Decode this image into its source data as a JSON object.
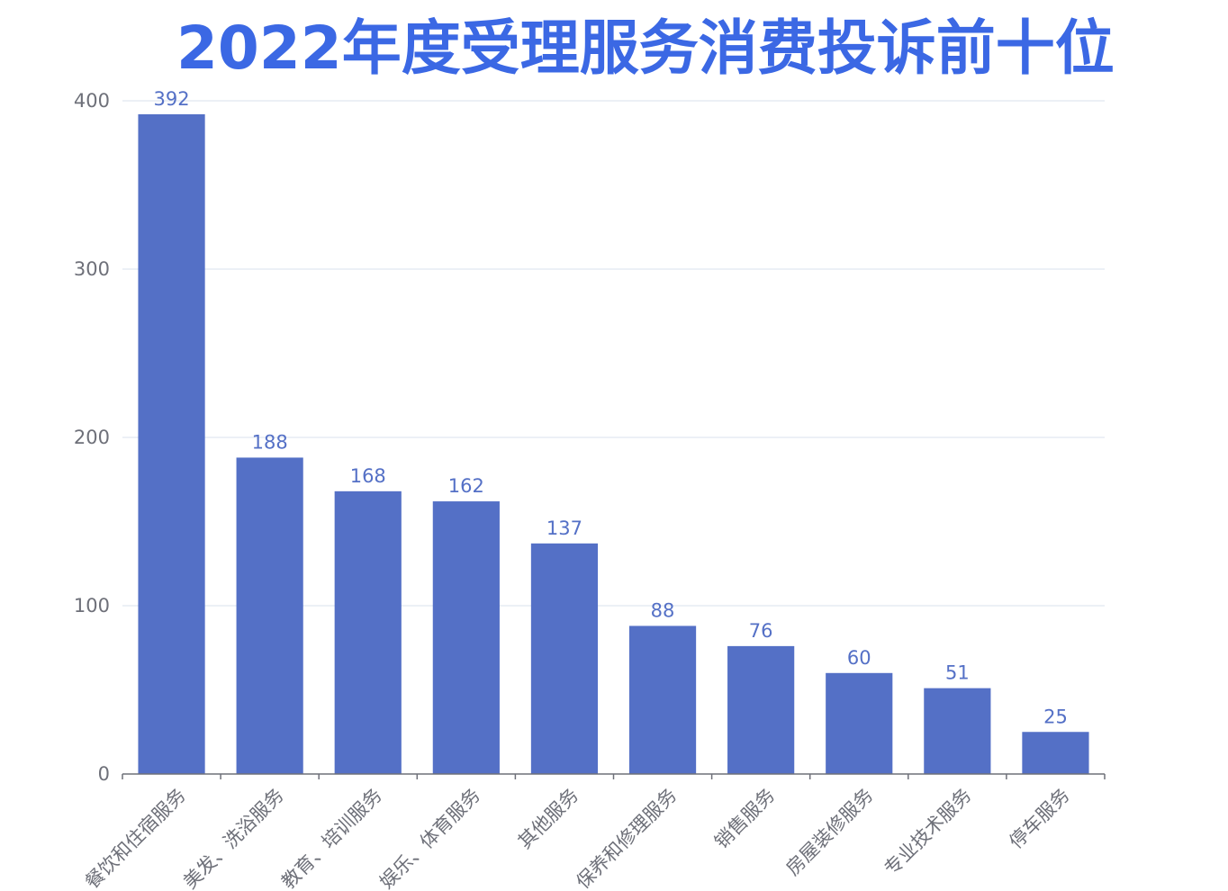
{
  "chart_data": {
    "type": "bar",
    "title": "2022年度受理服务消费投诉前十位",
    "categories": [
      "餐饮和住宿服务",
      "美发、洗浴服务",
      "教育、培训服务",
      "娱乐、体育服务",
      "其他服务",
      "保养和修理服务",
      "销售服务",
      "房屋装修服务",
      "专业技术服务",
      "停车服务"
    ],
    "values": [
      392,
      188,
      168,
      162,
      137,
      88,
      76,
      60,
      51,
      25
    ],
    "ylim": [
      0,
      400
    ],
    "yticks": [
      0,
      100,
      200,
      300,
      400
    ],
    "grid": true,
    "show_data_labels": true,
    "colors": {
      "bar": "#5470c6",
      "title": "#3b68e4",
      "grid": "#e0e6f1",
      "axis": "#6e7079"
    }
  }
}
